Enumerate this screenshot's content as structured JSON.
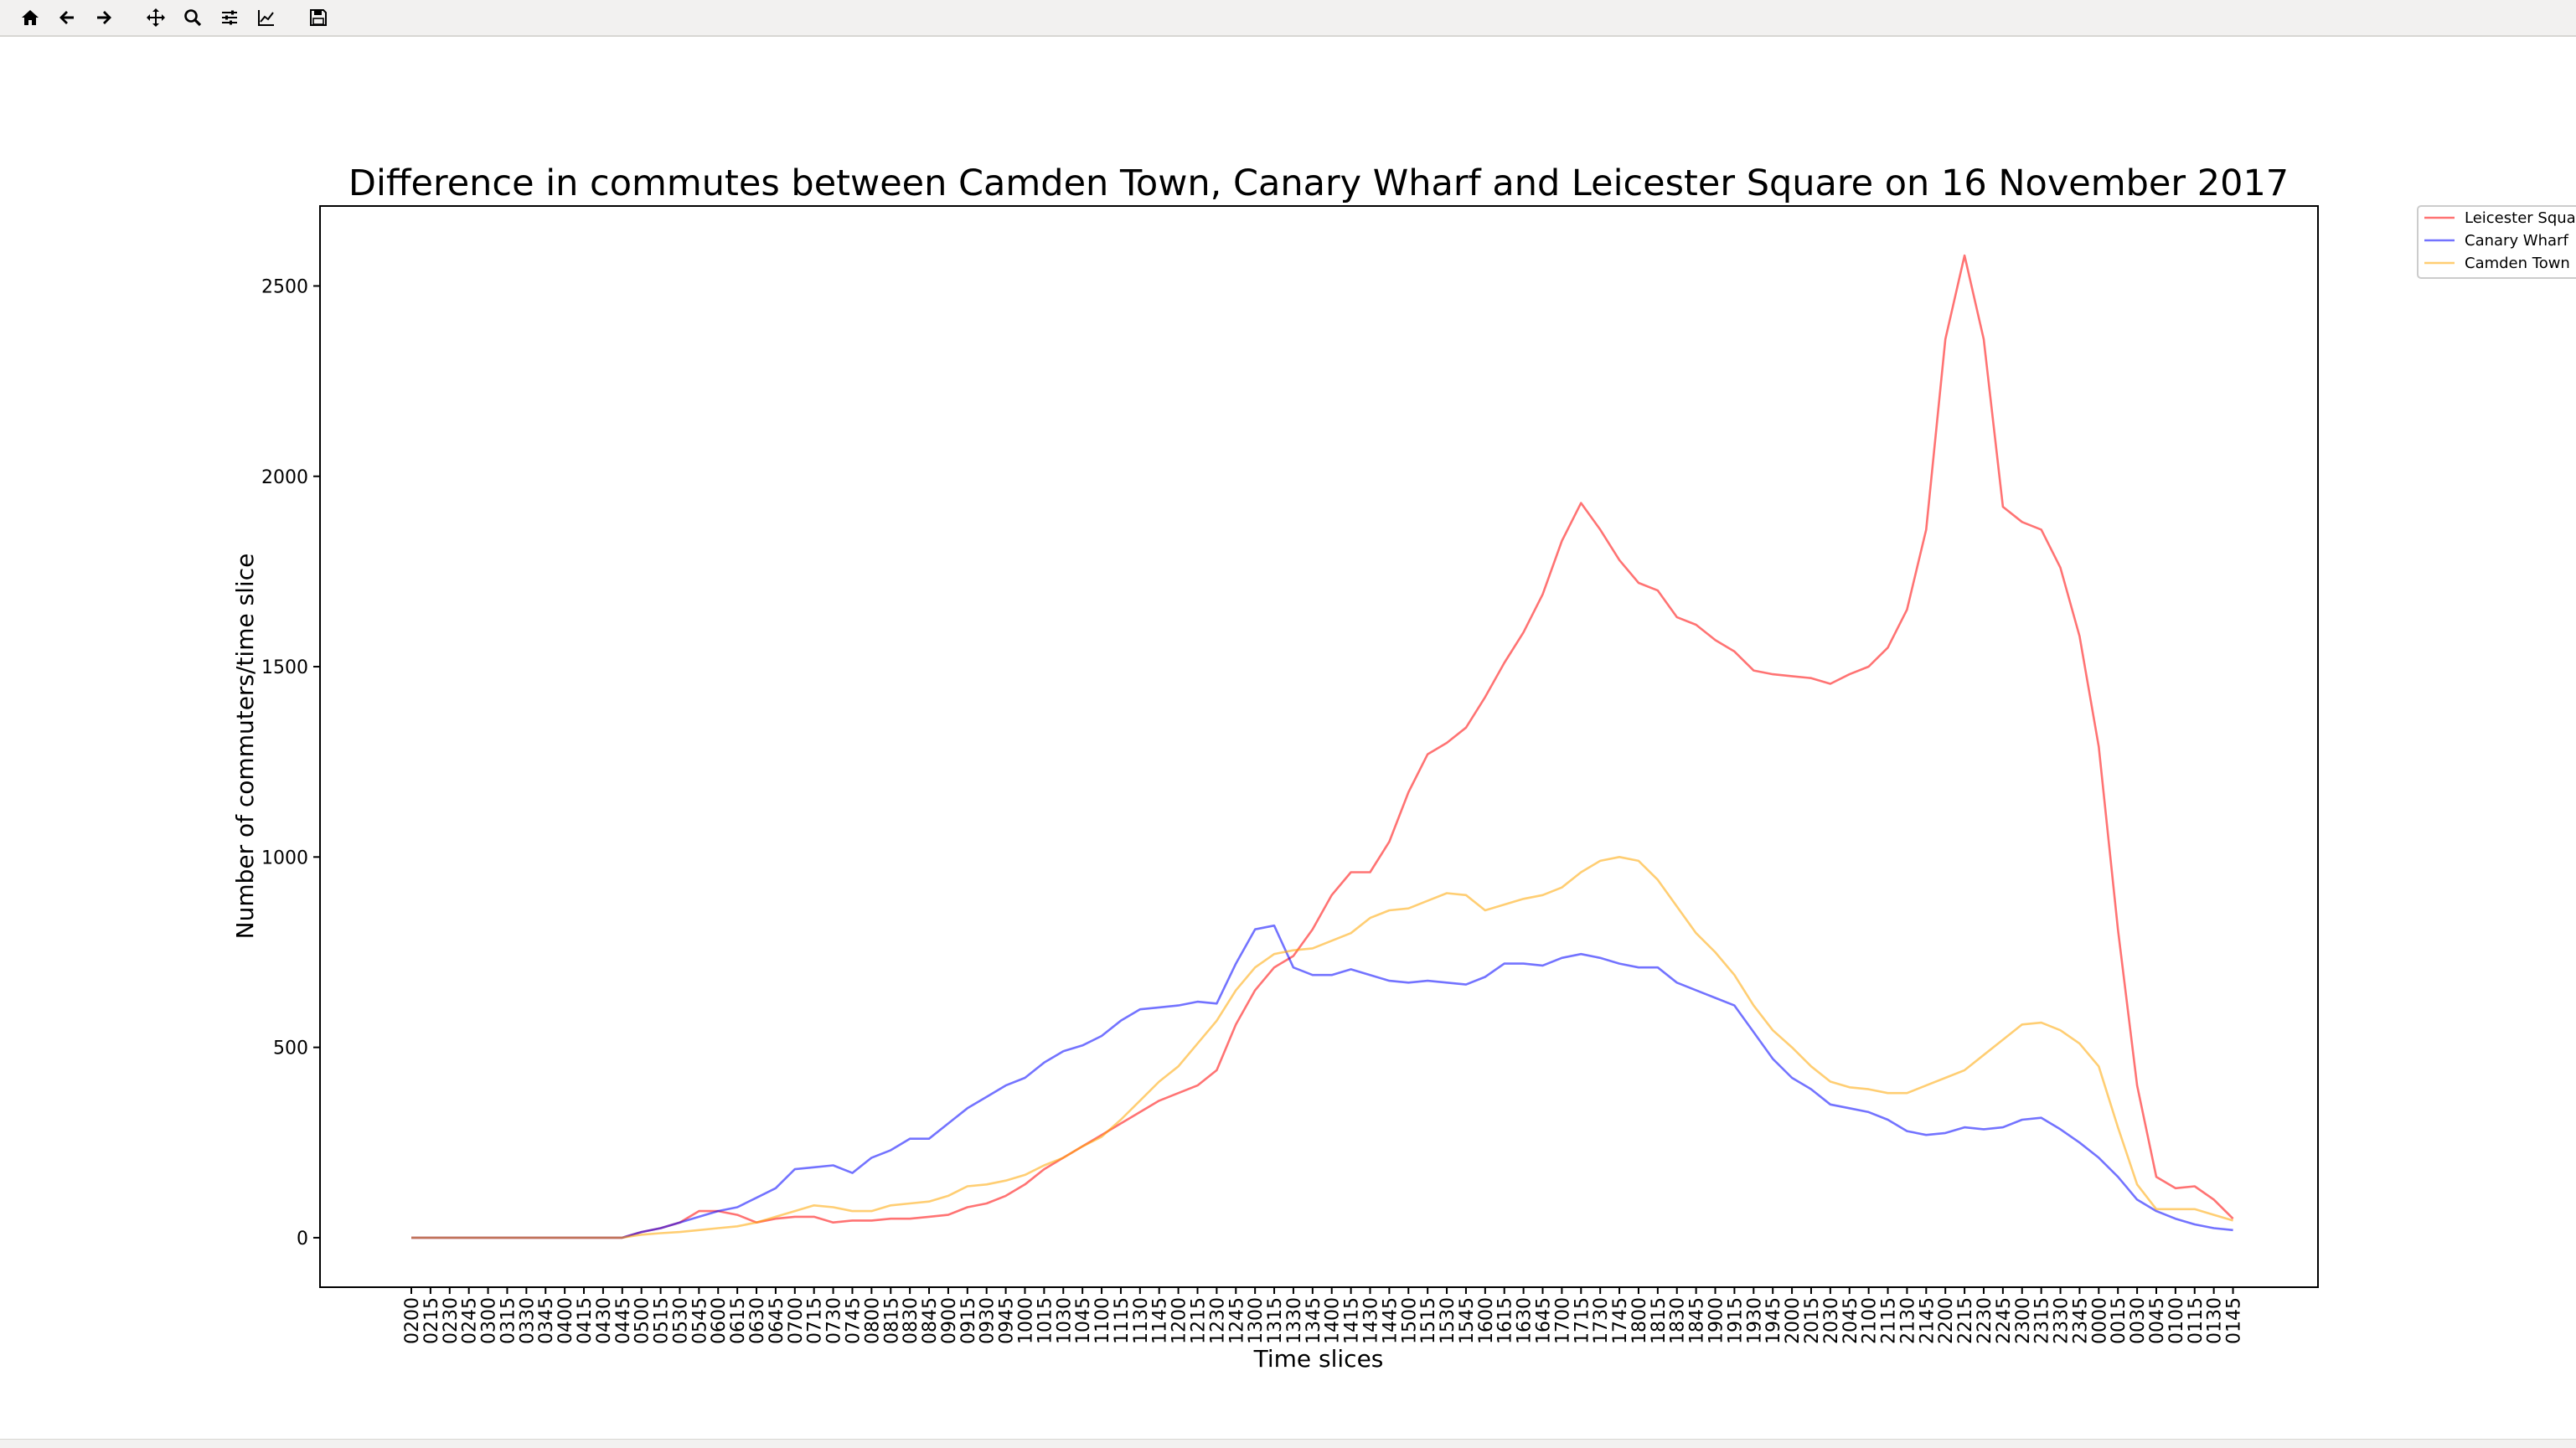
{
  "toolbar": {
    "buttons": [
      {
        "name": "home-icon"
      },
      {
        "name": "back-arrow-icon"
      },
      {
        "name": "forward-arrow-icon"
      },
      {
        "name": "pan-icon"
      },
      {
        "name": "zoom-icon"
      },
      {
        "name": "configure-subplots-icon"
      },
      {
        "name": "edit-axis-icon"
      },
      {
        "name": "save-icon"
      }
    ]
  },
  "chart_data": {
    "type": "line",
    "title": "Difference in commutes between Camden Town, Canary Wharf and Leicester Square on 16 November 2017",
    "xlabel": "Time slices",
    "ylabel": "Number of commuters/time slice",
    "ylim": [
      -130,
      2710
    ],
    "yticks": [
      0,
      500,
      1000,
      1500,
      2000,
      2500
    ],
    "grid": false,
    "legend_position": "top-right",
    "categories": [
      "0200",
      "0215",
      "0230",
      "0245",
      "0300",
      "0315",
      "0330",
      "0345",
      "0400",
      "0415",
      "0430",
      "0445",
      "0500",
      "0515",
      "0530",
      "0545",
      "0600",
      "0615",
      "0630",
      "0645",
      "0700",
      "0715",
      "0730",
      "0745",
      "0800",
      "0815",
      "0830",
      "0845",
      "0900",
      "0915",
      "0930",
      "0945",
      "1000",
      "1015",
      "1030",
      "1045",
      "1100",
      "1115",
      "1130",
      "1145",
      "1200",
      "1215",
      "1230",
      "1245",
      "1300",
      "1315",
      "1330",
      "1345",
      "1400",
      "1415",
      "1430",
      "1445",
      "1500",
      "1515",
      "1530",
      "1545",
      "1600",
      "1615",
      "1630",
      "1645",
      "1700",
      "1715",
      "1730",
      "1745",
      "1800",
      "1815",
      "1830",
      "1845",
      "1900",
      "1915",
      "1930",
      "1945",
      "2000",
      "2015",
      "2030",
      "2045",
      "2100",
      "2115",
      "2130",
      "2145",
      "2200",
      "2215",
      "2230",
      "2245",
      "2300",
      "2315",
      "2330",
      "2345",
      "0000",
      "0015",
      "0030",
      "0045",
      "0100",
      "0115",
      "0130",
      "0145"
    ],
    "series": [
      {
        "name": "Leicester Square",
        "color": "#ff0000",
        "values": [
          0,
          0,
          0,
          0,
          0,
          0,
          0,
          0,
          0,
          0,
          0,
          0,
          15,
          25,
          40,
          70,
          70,
          60,
          40,
          50,
          55,
          55,
          40,
          45,
          45,
          50,
          50,
          55,
          60,
          80,
          90,
          110,
          140,
          180,
          210,
          240,
          270,
          300,
          330,
          360,
          380,
          400,
          440,
          560,
          650,
          710,
          740,
          810,
          900,
          960,
          960,
          1040,
          1170,
          1270,
          1300,
          1340,
          1420,
          1510,
          1590,
          1690,
          1830,
          1930,
          1860,
          1780,
          1720,
          1700,
          1630,
          1610,
          1570,
          1540,
          1490,
          1480,
          1475,
          1470,
          1455,
          1480,
          1500,
          1550,
          1650,
          1860,
          2360,
          2580,
          2360,
          1920,
          1880,
          1860,
          1760,
          1580,
          1290,
          810,
          400,
          160,
          130,
          135,
          100,
          50
        ]
      },
      {
        "name": "Canary Wharf",
        "color": "#0000ff",
        "values": [
          0,
          0,
          0,
          0,
          0,
          0,
          0,
          0,
          0,
          0,
          0,
          0,
          15,
          25,
          40,
          55,
          70,
          80,
          105,
          130,
          180,
          185,
          190,
          170,
          210,
          230,
          260,
          260,
          300,
          340,
          370,
          400,
          420,
          460,
          490,
          505,
          530,
          570,
          600,
          605,
          610,
          620,
          615,
          720,
          810,
          820,
          710,
          690,
          690,
          705,
          690,
          675,
          670,
          675,
          670,
          665,
          685,
          720,
          720,
          715,
          735,
          745,
          735,
          720,
          710,
          710,
          670,
          650,
          630,
          610,
          540,
          470,
          420,
          390,
          350,
          340,
          330,
          310,
          280,
          270,
          275,
          290,
          285,
          290,
          310,
          315,
          285,
          250,
          210,
          160,
          100,
          70,
          50,
          35,
          25,
          20
        ]
      },
      {
        "name": "Camden Town",
        "color": "#ffa500",
        "values": [
          0,
          0,
          0,
          0,
          0,
          0,
          0,
          0,
          0,
          0,
          0,
          0,
          8,
          12,
          15,
          20,
          25,
          30,
          40,
          55,
          70,
          85,
          80,
          70,
          70,
          85,
          90,
          95,
          110,
          135,
          140,
          150,
          165,
          190,
          210,
          240,
          265,
          310,
          360,
          410,
          450,
          510,
          570,
          650,
          710,
          745,
          755,
          760,
          780,
          800,
          840,
          860,
          865,
          885,
          905,
          900,
          860,
          875,
          890,
          900,
          920,
          960,
          990,
          1000,
          990,
          940,
          870,
          800,
          750,
          690,
          610,
          545,
          500,
          450,
          410,
          395,
          390,
          380,
          380,
          400,
          420,
          440,
          480,
          520,
          560,
          565,
          545,
          510,
          450,
          290,
          140,
          75,
          75,
          75,
          60,
          45
        ]
      }
    ]
  }
}
